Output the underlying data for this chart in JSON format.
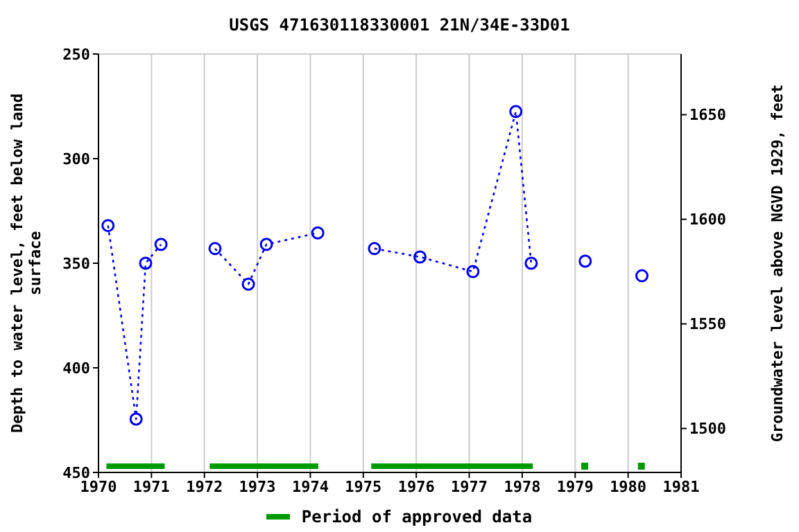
{
  "chart_data": {
    "type": "line",
    "title": "USGS 471630118330001 21N/34E-33D01",
    "ylabel": "Depth to water level, feet below land surface",
    "y2label": "Groundwater level above NGVD 1929, feet",
    "series": [
      {
        "color": "#0000ff",
        "x": [
          1970.18,
          1970.71,
          1970.89,
          1971.18
        ],
        "values": [
          332,
          424.5,
          350,
          341
        ]
      },
      {
        "color": "#0000ff",
        "x": [
          1972.2,
          1972.83,
          1973.17,
          1974.14
        ],
        "values": [
          343,
          360,
          341,
          335.5
        ]
      },
      {
        "color": "#0000ff",
        "x": [
          1975.21,
          1976.07,
          1977.07,
          1977.88,
          1978.17
        ],
        "values": [
          343,
          347,
          354,
          277.5,
          350
        ]
      },
      {
        "color": "#0000ff",
        "x": [
          1979.19
        ],
        "values": [
          349
        ]
      },
      {
        "color": "#0000ff",
        "x": [
          1980.26
        ],
        "values": [
          356
        ]
      },
      {
        "name": "Period of approved data",
        "color": "#009900",
        "marker": "none",
        "line_style": "solid",
        "x": [
          1970.15,
          1971.25
        ],
        "values": [
          447,
          447
        ]
      },
      {
        "color": "#009900",
        "marker": "none",
        "line_style": "solid",
        "x": [
          1972.1,
          1974.15
        ],
        "values": [
          447,
          447
        ]
      },
      {
        "color": "#009900",
        "marker": "none",
        "line_style": "solid",
        "x": [
          1975.15,
          1978.2
        ],
        "values": [
          447,
          447
        ]
      },
      {
        "type": "scatter",
        "color": "#009900",
        "marker": "square",
        "x": [
          1979.18
        ],
        "values": [
          447
        ]
      },
      {
        "type": "scatter",
        "color": "#009900",
        "marker": "square",
        "x": [
          1980.25
        ],
        "values": [
          447
        ]
      }
    ],
    "xlim": [
      1970,
      1981
    ],
    "xticks": [
      1970,
      1971,
      1972,
      1973,
      1974,
      1975,
      1976,
      1977,
      1978,
      1979,
      1980,
      1981
    ],
    "ylim": [
      450,
      250
    ],
    "yticks": [
      250,
      300,
      350,
      400,
      450
    ],
    "y2lim": [
      1479,
      1679
    ],
    "y2ticks": [
      1500,
      1550,
      1600,
      1650
    ],
    "grid": true,
    "legend": "bottom",
    "marker": "circle",
    "line_style": "dotted"
  }
}
